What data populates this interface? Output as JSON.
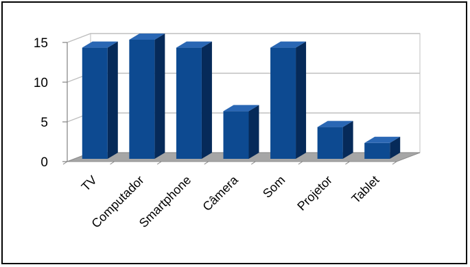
{
  "chart_data": {
    "type": "bar",
    "categories": [
      "TV",
      "Computador",
      "Smartphone",
      "Câmera",
      "Som",
      "Projetor",
      "Tablet"
    ],
    "values": [
      14,
      15,
      14,
      6,
      14,
      4,
      2
    ],
    "title": "",
    "xlabel": "",
    "ylabel": "",
    "ylim": [
      0,
      15
    ],
    "y_ticks": [
      "0",
      "5",
      "10",
      "15"
    ],
    "grid": true,
    "legend": "none",
    "three_d": true,
    "colors": {
      "bar_front": "#0d4a91",
      "bar_side": "#062a59",
      "bar_top": "#2a67b4",
      "floor": "#a6a6a6",
      "walls": "#ffffff",
      "gridline": "#bfbfbf"
    }
  }
}
